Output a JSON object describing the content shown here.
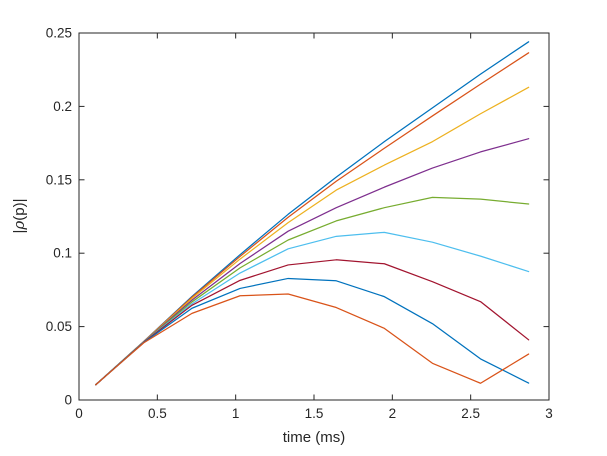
{
  "figure": {
    "background": "#ffffff",
    "axis_color": "#262626"
  },
  "chart_data": {
    "type": "line",
    "title": "",
    "xlabel": "time (ms)",
    "ylabel": "|ρ(p)|",
    "ylabel_parts": [
      "|",
      "ρ",
      "(p)|"
    ],
    "xlim": [
      0,
      3
    ],
    "ylim": [
      0,
      0.25
    ],
    "xticks": [
      0,
      0.5,
      1,
      1.5,
      2,
      2.5,
      3
    ],
    "xtick_labels": [
      "0",
      "0.5",
      "1",
      "1.5",
      "2",
      "2.5",
      "3"
    ],
    "yticks": [
      0,
      0.05,
      0.1,
      0.15,
      0.2,
      0.25
    ],
    "ytick_labels": [
      "0",
      "0.05",
      "0.1",
      "0.15",
      "0.2",
      "0.25"
    ],
    "grid": false,
    "legend": "none",
    "box": true,
    "x": [
      0.107,
      0.414,
      0.721,
      1.028,
      1.335,
      1.642,
      1.949,
      2.256,
      2.563,
      2.87
    ],
    "series": [
      {
        "name": "line-1",
        "color": "#0072BD",
        "values": [
          0.0104,
          0.04,
          0.0705,
          0.099,
          0.1265,
          0.1518,
          0.176,
          0.199,
          0.222,
          0.244
        ]
      },
      {
        "name": "line-2",
        "color": "#D95319",
        "values": [
          0.0104,
          0.0399,
          0.07,
          0.0978,
          0.1245,
          0.149,
          0.1715,
          0.1935,
          0.2152,
          0.2365
        ]
      },
      {
        "name": "line-3",
        "color": "#EDB120",
        "values": [
          0.0104,
          0.0398,
          0.0692,
          0.096,
          0.1208,
          0.143,
          0.16,
          0.176,
          0.195,
          0.213
        ]
      },
      {
        "name": "line-4",
        "color": "#7E2F8E",
        "values": [
          0.0104,
          0.0397,
          0.068,
          0.093,
          0.115,
          0.131,
          0.145,
          0.158,
          0.169,
          0.178
        ]
      },
      {
        "name": "line-5",
        "color": "#77AC30",
        "values": [
          0.0104,
          0.0396,
          0.0668,
          0.09,
          0.109,
          0.122,
          0.131,
          0.138,
          0.1368,
          0.1335
        ]
      },
      {
        "name": "line-6",
        "color": "#4DBEEE",
        "values": [
          0.0104,
          0.0395,
          0.0655,
          0.0865,
          0.103,
          0.1115,
          0.1142,
          0.1075,
          0.098,
          0.0875
        ]
      },
      {
        "name": "line-7",
        "color": "#A2142F",
        "values": [
          0.0104,
          0.0394,
          0.0645,
          0.0815,
          0.092,
          0.0955,
          0.0928,
          0.0806,
          0.067,
          0.041
        ]
      },
      {
        "name": "line-8",
        "color": "#0072BD",
        "values": [
          0.0104,
          0.0392,
          0.0625,
          0.076,
          0.0828,
          0.0812,
          0.0704,
          0.052,
          0.028,
          0.0115
        ]
      },
      {
        "name": "line-9",
        "color": "#D95319",
        "values": [
          0.0104,
          0.039,
          0.059,
          0.071,
          0.0722,
          0.063,
          0.0488,
          0.025,
          0.0114,
          0.0313
        ]
      }
    ]
  }
}
